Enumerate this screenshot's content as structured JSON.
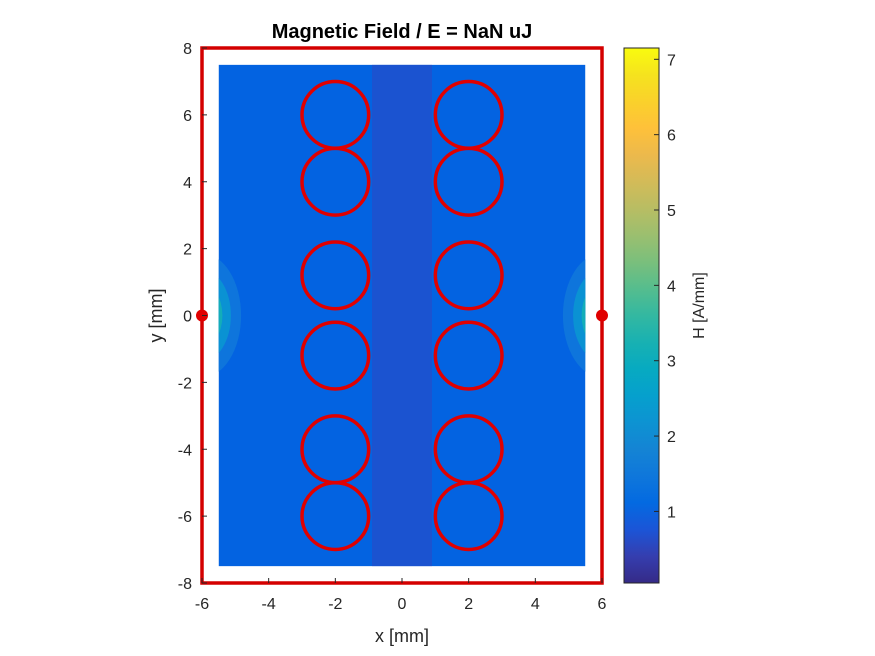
{
  "chart_data": {
    "type": "heatmap",
    "title": "Magnetic Field  / E = NaN uJ",
    "xlabel": "x [mm]",
    "ylabel": "y [mm]",
    "xlim": [
      -6,
      6
    ],
    "ylim": [
      -8,
      8
    ],
    "xticks": [
      -6,
      -4,
      -2,
      0,
      2,
      4,
      6
    ],
    "yticks": [
      -8,
      -6,
      -4,
      -2,
      0,
      2,
      4,
      6,
      8
    ],
    "field_extent": {
      "x": [
        -5.5,
        5.5
      ],
      "y": [
        -7.5,
        7.5
      ]
    },
    "boundary": {
      "x": [
        -6,
        6
      ],
      "y": [
        -8,
        8
      ],
      "color": "#d40000"
    },
    "electrodes": [
      {
        "x": -6,
        "y": 0
      },
      {
        "x": 6,
        "y": 0
      }
    ],
    "conductors": {
      "radius": 1,
      "color": "#e00000",
      "centers": [
        {
          "x": -2,
          "y": 6
        },
        {
          "x": 2,
          "y": 6
        },
        {
          "x": -2,
          "y": 4
        },
        {
          "x": 2,
          "y": 4
        },
        {
          "x": -2,
          "y": 1.2
        },
        {
          "x": 2,
          "y": 1.2
        },
        {
          "x": -2,
          "y": -1.2
        },
        {
          "x": 2,
          "y": -1.2
        },
        {
          "x": -2,
          "y": -4
        },
        {
          "x": 2,
          "y": -4
        },
        {
          "x": -2,
          "y": -6
        },
        {
          "x": 2,
          "y": -6
        }
      ]
    },
    "colorbar": {
      "label": "H [A/mm]",
      "range": [
        0.05,
        7.15
      ],
      "ticks": [
        1,
        2,
        3,
        4,
        5,
        6,
        7
      ],
      "colormap": "parula"
    }
  }
}
